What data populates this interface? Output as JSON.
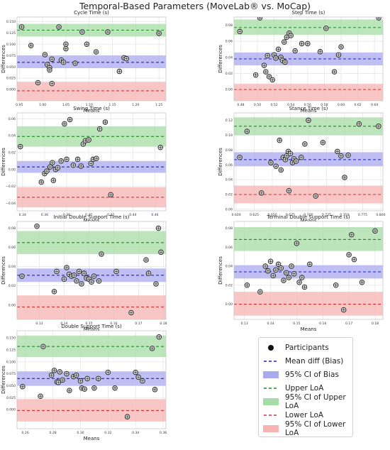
{
  "figure_title": "Temporal-Based Parameters (MoveLab® vs. MoCap)",
  "colors": {
    "bias_line": "#1f1fc8",
    "ci_bias_fill": "#aaaaf0",
    "upper_loa_line": "#1e8c1e",
    "ci_upper_fill": "#a6dca6",
    "lower_loa_line": "#d23232",
    "ci_lower_fill": "#f7b3b3",
    "grid": "#e6e6e6",
    "point_fill": "#d9d9d9",
    "point_edge": "#222222"
  },
  "legend": {
    "entries": [
      {
        "label": "Participants",
        "kind": "dot"
      },
      {
        "label": "Mean diff (Bias)",
        "kind": "bias_line"
      },
      {
        "label": "95% CI of Bias",
        "kind": "bias_fill"
      },
      {
        "label": "Upper LoA",
        "kind": "upper_line"
      },
      {
        "label": "95% CI of Upper LoA",
        "kind": "upper_fill"
      },
      {
        "label": "Lower LoA",
        "kind": "lower_line"
      },
      {
        "label": "95% CI of Lower LoA",
        "kind": "lower_fill"
      }
    ]
  },
  "chart_data": [
    {
      "type": "scatter",
      "title": "Cycle Time (s)",
      "xlabel": "Means",
      "ylabel": "Differences",
      "xlim": [
        0.945,
        1.265
      ],
      "ylim": [
        -0.025,
        0.16
      ],
      "xticks": [
        0.95,
        1.0,
        1.05,
        1.1,
        1.15,
        1.2,
        1.25
      ],
      "xtick_labels": [
        "0.95",
        "1.00",
        "1.05",
        "1.10",
        "1.15",
        "1.20",
        "1.25"
      ],
      "yticks": [
        0.0,
        0.025,
        0.05,
        0.075,
        0.1,
        0.125,
        0.15
      ],
      "ytick_labels": [
        "0.000",
        "0.025",
        "0.050",
        "0.075",
        "0.100",
        "0.125",
        "0.150"
      ],
      "bias": 0.06,
      "bias_ci": [
        0.047,
        0.075
      ],
      "upper_loa": 0.131,
      "upper_loa_ci": [
        0.117,
        0.145
      ],
      "lower_loa": -0.003,
      "lower_loa_ci": [
        -0.028,
        0.017
      ],
      "x": [
        0.955,
        0.975,
        0.99,
        1.005,
        1.01,
        1.015,
        1.015,
        1.02,
        1.02,
        1.035,
        1.04,
        1.045,
        1.05,
        1.05,
        1.07,
        1.085,
        1.095,
        1.115,
        1.14,
        1.165,
        1.175,
        1.18,
        1.25
      ],
      "y": [
        0.138,
        0.097,
        0.015,
        0.077,
        0.055,
        0.048,
        0.043,
        0.067,
        0.013,
        0.138,
        0.065,
        0.06,
        0.1,
        0.09,
        0.058,
        0.127,
        0.1,
        0.083,
        0.127,
        0.04,
        0.07,
        0.068,
        0.124
      ]
    },
    {
      "type": "scatter",
      "title": "Step Time (s)",
      "xlabel": "Means",
      "ylabel": "Differences",
      "xlim": [
        0.472,
        0.65
      ],
      "ylim": [
        -0.014,
        0.09
      ],
      "xticks": [
        0.48,
        0.5,
        0.52,
        0.54,
        0.56,
        0.58,
        0.6,
        0.62,
        0.64
      ],
      "xtick_labels": [
        "0.48",
        "0.50",
        "0.52",
        "0.54",
        "0.56",
        "0.58",
        "0.60",
        "0.62",
        "0.64"
      ],
      "yticks": [
        0.0,
        0.02,
        0.04,
        0.06,
        0.08
      ],
      "ytick_labels": [
        "0.00",
        "0.02",
        "0.04",
        "0.06",
        "0.08"
      ],
      "bias": 0.038,
      "bias_ci": [
        0.03,
        0.046
      ],
      "upper_loa": 0.077,
      "upper_loa_ci": [
        0.068,
        0.087
      ],
      "lower_loa": 0.0,
      "lower_loa_ci": [
        -0.014,
        0.007
      ],
      "x": [
        0.479,
        0.498,
        0.503,
        0.508,
        0.51,
        0.512,
        0.514,
        0.518,
        0.52,
        0.522,
        0.525,
        0.528,
        0.53,
        0.532,
        0.533,
        0.535,
        0.538,
        0.54,
        0.545,
        0.553,
        0.56,
        0.575,
        0.582,
        0.592,
        0.597,
        0.6,
        0.645
      ],
      "y": [
        0.072,
        0.018,
        0.089,
        0.03,
        0.022,
        0.042,
        0.016,
        0.012,
        0.043,
        0.039,
        0.05,
        0.04,
        0.036,
        0.059,
        0.034,
        0.065,
        0.07,
        0.067,
        0.048,
        0.057,
        0.057,
        0.047,
        0.076,
        0.022,
        0.043,
        0.053,
        0.089
      ]
    },
    {
      "type": "scatter",
      "title": "Swing Time (s)",
      "xlabel": "Means",
      "ylabel": "Differences",
      "xlim": [
        0.335,
        0.47
      ],
      "ylim": [
        -0.049,
        0.067
      ],
      "xticks": [
        0.34,
        0.36,
        0.38,
        0.4,
        0.42,
        0.44,
        0.46
      ],
      "xtick_labels": [
        "0.34",
        "0.36",
        "0.38",
        "0.40",
        "0.42",
        "0.44",
        "0.46"
      ],
      "yticks": [
        -0.04,
        -0.02,
        0.0,
        0.02,
        0.04,
        0.06
      ],
      "ytick_labels": [
        "−0.04",
        "−0.02",
        "0.00",
        "0.02",
        "0.04",
        "0.06"
      ],
      "bias": 0.003,
      "bias_ci": [
        -0.004,
        0.01
      ],
      "upper_loa": 0.039,
      "upper_loa_ci": [
        0.027,
        0.051
      ],
      "lower_loa": -0.033,
      "lower_loa_ci": [
        -0.045,
        -0.021
      ],
      "x": [
        0.338,
        0.357,
        0.36,
        0.362,
        0.365,
        0.367,
        0.368,
        0.37,
        0.372,
        0.375,
        0.378,
        0.38,
        0.383,
        0.386,
        0.39,
        0.393,
        0.395,
        0.397,
        0.4,
        0.402,
        0.404,
        0.407,
        0.41,
        0.415,
        0.42,
        0.465
      ],
      "y": [
        0.027,
        -0.015,
        -0.005,
        -0.002,
        0.003,
        0.008,
        -0.013,
        0.0,
        0.002,
        0.01,
        0.054,
        0.012,
        0.059,
        0.005,
        0.012,
        0.004,
        0.03,
        0.034,
        0.035,
        0.007,
        0.012,
        0.013,
        0.048,
        0.056,
        -0.03,
        0.026
      ]
    },
    {
      "type": "scatter",
      "title": "Stance Time (s)",
      "xlabel": "Means",
      "ylabel": "Differences",
      "xlim": [
        0.597,
        0.803
      ],
      "ylim": [
        -0.002,
        0.13
      ],
      "xticks": [
        0.6,
        0.625,
        0.65,
        0.675,
        0.7,
        0.725,
        0.75,
        0.775,
        0.8
      ],
      "xtick_labels": [
        "0.600",
        "0.625",
        "0.650",
        "0.675",
        "0.700",
        "0.725",
        "0.750",
        "0.775",
        "0.800"
      ],
      "yticks": [
        0.0,
        0.02,
        0.04,
        0.06,
        0.08,
        0.1,
        0.12
      ],
      "ytick_labels": [
        "0.00",
        "0.02",
        "0.04",
        "0.06",
        "0.08",
        "0.10",
        "0.12"
      ],
      "bias": 0.067,
      "bias_ci": [
        0.058,
        0.077
      ],
      "upper_loa": 0.112,
      "upper_loa_ci": [
        0.1,
        0.124
      ],
      "lower_loa": 0.02,
      "lower_loa_ci": [
        0.008,
        0.032
      ],
      "x": [
        0.605,
        0.615,
        0.635,
        0.648,
        0.655,
        0.66,
        0.662,
        0.665,
        0.668,
        0.67,
        0.672,
        0.673,
        0.675,
        0.678,
        0.68,
        0.683,
        0.69,
        0.695,
        0.7,
        0.71,
        0.72,
        0.74,
        0.745,
        0.75,
        0.755,
        0.77,
        0.797
      ],
      "y": [
        0.07,
        0.105,
        0.022,
        0.063,
        0.058,
        0.093,
        0.053,
        0.07,
        0.067,
        0.072,
        0.078,
        0.025,
        0.075,
        0.063,
        0.068,
        0.065,
        0.07,
        0.088,
        0.12,
        0.018,
        0.09,
        0.078,
        0.072,
        0.043,
        0.073,
        0.115,
        0.112
      ]
    },
    {
      "type": "scatter",
      "title": "Initial Double Support Time (s)",
      "xlabel": "Means",
      "ylabel": "Differences",
      "xlim": [
        0.121,
        0.181
      ],
      "ylim": [
        -0.015,
        0.087
      ],
      "xticks": [
        0.13,
        0.14,
        0.15,
        0.16,
        0.17,
        0.18
      ],
      "xtick_labels": [
        "0.13",
        "0.14",
        "0.15",
        "0.16",
        "0.17",
        "0.18"
      ],
      "yticks": [
        0.0,
        0.02,
        0.04,
        0.06,
        0.08
      ],
      "ytick_labels": [
        "0.00",
        "0.02",
        "0.04",
        "0.06",
        "0.08"
      ],
      "bias": 0.031,
      "bias_ci": [
        0.024,
        0.038
      ],
      "upper_loa": 0.065,
      "upper_loa_ci": [
        0.053,
        0.077
      ],
      "lower_loa": -0.002,
      "lower_loa_ci": [
        -0.015,
        0.01
      ],
      "x": [
        0.123,
        0.129,
        0.136,
        0.137,
        0.14,
        0.141,
        0.142,
        0.143,
        0.144,
        0.145,
        0.146,
        0.147,
        0.148,
        0.149,
        0.15,
        0.151,
        0.152,
        0.154,
        0.155,
        0.161,
        0.167,
        0.173,
        0.174,
        0.177,
        0.178,
        0.179
      ],
      "y": [
        0.03,
        0.082,
        0.014,
        0.035,
        0.027,
        0.039,
        0.032,
        0.03,
        0.031,
        0.025,
        0.035,
        0.022,
        0.033,
        0.028,
        0.027,
        0.024,
        0.03,
        0.025,
        0.053,
        0.035,
        -0.008,
        0.047,
        0.033,
        0.022,
        0.08,
        0.055
      ]
    },
    {
      "type": "scatter",
      "title": "Terminal Double Support Time (s)",
      "xlabel": "Means",
      "ylabel": "Differences",
      "xlim": [
        0.126,
        0.183
      ],
      "ylim": [
        -0.016,
        0.087
      ],
      "xticks": [
        0.13,
        0.14,
        0.15,
        0.16,
        0.17,
        0.18
      ],
      "xtick_labels": [
        "0.13",
        "0.14",
        "0.15",
        "0.16",
        "0.17",
        "0.18"
      ],
      "yticks": [
        0.0,
        0.02,
        0.04,
        0.06,
        0.08
      ],
      "ytick_labels": [
        "0.00",
        "0.02",
        "0.04",
        "0.06",
        "0.08"
      ],
      "bias": 0.034,
      "bias_ci": [
        0.027,
        0.041
      ],
      "upper_loa": 0.068,
      "upper_loa_ci": [
        0.056,
        0.081
      ],
      "lower_loa": 0.0,
      "lower_loa_ci": [
        -0.012,
        0.013
      ],
      "x": [
        0.131,
        0.136,
        0.138,
        0.139,
        0.14,
        0.141,
        0.142,
        0.143,
        0.144,
        0.145,
        0.146,
        0.147,
        0.148,
        0.149,
        0.15,
        0.151,
        0.152,
        0.153,
        0.155,
        0.165,
        0.168,
        0.17,
        0.171,
        0.172,
        0.175,
        0.18
      ],
      "y": [
        0.02,
        0.013,
        0.04,
        0.035,
        0.045,
        0.03,
        0.036,
        0.042,
        0.038,
        0.025,
        0.033,
        0.028,
        0.04,
        0.032,
        0.064,
        0.023,
        0.028,
        0.018,
        0.042,
        0.02,
        -0.006,
        0.052,
        0.073,
        0.047,
        0.023,
        0.077
      ]
    },
    {
      "type": "scatter",
      "title": "Double Support Time (s)",
      "xlabel": "Means",
      "ylabel": "Differences",
      "xlim": [
        0.254,
        0.362
      ],
      "ylim": [
        -0.04,
        0.165
      ],
      "xticks": [
        0.26,
        0.28,
        0.3,
        0.32,
        0.34,
        0.36
      ],
      "xtick_labels": [
        "0.26",
        "0.28",
        "0.30",
        "0.32",
        "0.34",
        "0.36"
      ],
      "yticks": [
        0.0,
        0.025,
        0.05,
        0.075,
        0.1,
        0.125,
        0.15
      ],
      "ytick_labels": [
        "0.000",
        "0.025",
        "0.050",
        "0.075",
        "0.100",
        "0.125",
        "0.150"
      ],
      "bias": 0.065,
      "bias_ci": [
        0.05,
        0.08
      ],
      "upper_loa": 0.132,
      "upper_loa_ci": [
        0.11,
        0.155
      ],
      "lower_loa": -0.002,
      "lower_loa_ci": [
        -0.025,
        0.022
      ],
      "x": [
        0.258,
        0.271,
        0.273,
        0.279,
        0.281,
        0.283,
        0.284,
        0.285,
        0.287,
        0.29,
        0.292,
        0.295,
        0.297,
        0.3,
        0.301,
        0.303,
        0.305,
        0.31,
        0.313,
        0.32,
        0.325,
        0.334,
        0.34,
        0.342,
        0.345,
        0.352,
        0.354,
        0.357
      ],
      "y": [
        0.048,
        0.028,
        0.132,
        0.072,
        0.082,
        0.058,
        0.057,
        0.079,
        0.062,
        0.075,
        0.04,
        0.069,
        0.072,
        0.06,
        0.045,
        0.043,
        0.065,
        0.045,
        0.065,
        0.078,
        0.045,
        -0.015,
        0.078,
        0.068,
        0.06,
        0.128,
        0.042,
        0.152
      ]
    }
  ]
}
